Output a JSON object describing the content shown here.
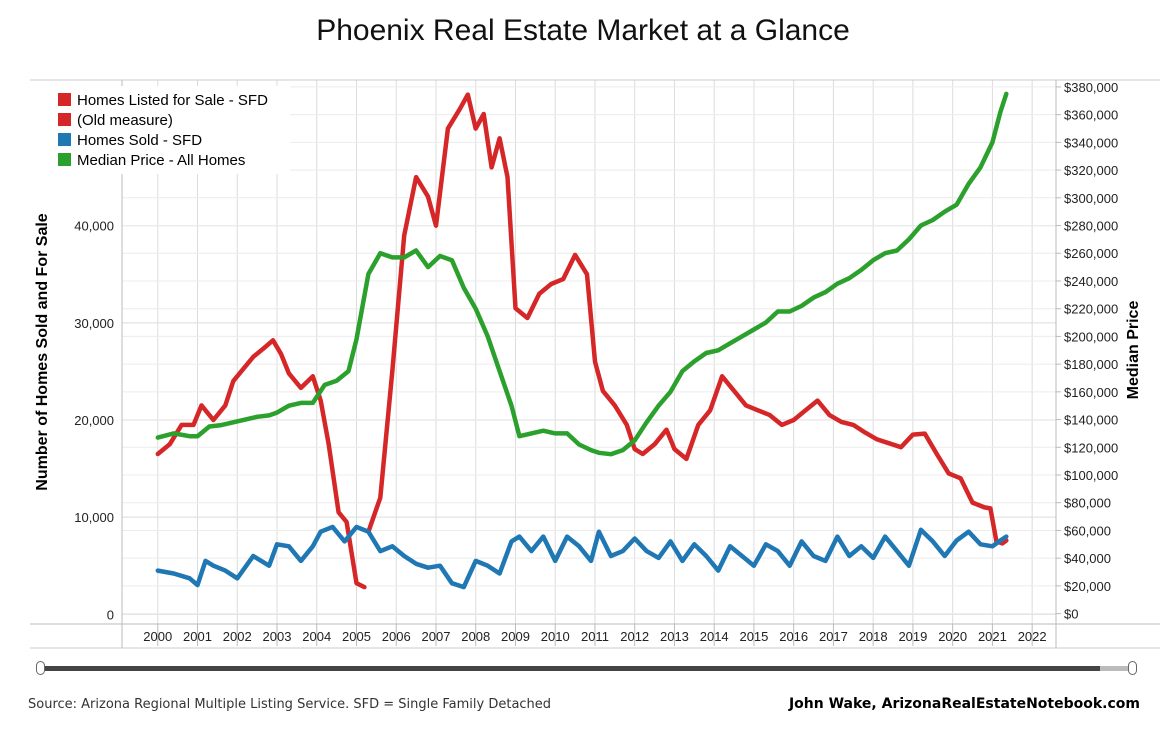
{
  "title": "Phoenix Real Estate Market at a Glance",
  "source_note": "Source: Arizona Regional Multiple Listing Service. SFD = Single Family Detached",
  "credit": "John Wake, ArizonaRealEstateNotebook.com",
  "chart_data": {
    "type": "line",
    "title": "Phoenix Real Estate Market at a Glance",
    "y_left_label": "Number of Homes Sold and For Sale",
    "y_right_label": "Median Price",
    "x_ticks": [
      "2000",
      "2001",
      "2002",
      "2003",
      "2004",
      "2005",
      "2006",
      "2007",
      "2008",
      "2009",
      "2010",
      "2011",
      "2012",
      "2013",
      "2014",
      "2015",
      "2016",
      "2017",
      "2018",
      "2019",
      "2020",
      "2021",
      "2022"
    ],
    "y_left_ticks": [
      "0",
      "10,000",
      "20,000",
      "30,000",
      "40,000"
    ],
    "y_right_ticks": [
      "$0",
      "$20,000",
      "$40,000",
      "$60,000",
      "$80,000",
      "$100,000",
      "$120,000",
      "$140,000",
      "$160,000",
      "$180,000",
      "$200,000",
      "$220,000",
      "$240,000",
      "$260,000",
      "$280,000",
      "$300,000",
      "$320,000",
      "$340,000",
      "$360,000",
      "$380,000"
    ],
    "xlim": [
      1999.1,
      2022.6
    ],
    "ylim_left": [
      -1000,
      55000
    ],
    "ylim_right": [
      -7500,
      385000
    ],
    "grid": true,
    "legend_position": "top-left",
    "series": [
      {
        "name": "Homes Listed for Sale - SFD",
        "color": "#d62728",
        "axis": "left",
        "x": [
          2000.0,
          2000.3,
          2000.6,
          2000.9,
          2001.1,
          2001.4,
          2001.7,
          2001.9,
          2002.1,
          2002.4,
          2002.7,
          2002.9,
          2003.1,
          2003.3,
          2003.6,
          2003.9,
          2004.1,
          2004.3,
          2004.55,
          2004.75,
          2005.0,
          2005.2
        ],
        "values": [
          16500,
          17500,
          19500,
          19500,
          21500,
          20000,
          21500,
          24000,
          25000,
          26500,
          27500,
          28200,
          26800,
          24800,
          23300,
          24500,
          22000,
          17500,
          10500,
          9500,
          3200,
          2800
        ]
      },
      {
        "name": "(Old measure)",
        "color": "#d62728",
        "axis": "left",
        "x": [
          2005.3,
          2005.6,
          2005.9,
          2006.2,
          2006.5,
          2006.8,
          2007.0,
          2007.3,
          2007.6,
          2007.8,
          2008.0,
          2008.2,
          2008.4,
          2008.6,
          2008.8,
          2009.0,
          2009.3,
          2009.6,
          2009.9,
          2010.2,
          2010.5,
          2010.8,
          2011.0,
          2011.2,
          2011.5,
          2011.8,
          2012.0,
          2012.2,
          2012.5,
          2012.8,
          2013.0,
          2013.3,
          2013.6,
          2013.9,
          2014.2,
          2014.5,
          2014.8,
          2015.1,
          2015.4,
          2015.7,
          2016.0,
          2016.3,
          2016.6,
          2016.9,
          2017.2,
          2017.5,
          2017.8,
          2018.1,
          2018.4,
          2018.7,
          2019.0,
          2019.3,
          2019.6,
          2019.9,
          2020.2,
          2020.5,
          2020.8,
          2020.95,
          2021.1,
          2021.25,
          2021.35
        ],
        "values": [
          8500,
          12000,
          25000,
          39000,
          45000,
          43000,
          40000,
          50000,
          52000,
          53500,
          50000,
          51500,
          46000,
          49000,
          45000,
          31500,
          30500,
          33000,
          34000,
          34500,
          37000,
          35000,
          26000,
          23000,
          21500,
          19500,
          17000,
          16500,
          17500,
          19000,
          17000,
          16000,
          19500,
          21000,
          24500,
          23000,
          21500,
          21000,
          20500,
          19500,
          20000,
          21000,
          22000,
          20500,
          19800,
          19500,
          18700,
          18000,
          17600,
          17200,
          18500,
          18600,
          16500,
          14500,
          14000,
          11500,
          11000,
          10900,
          7500,
          7300,
          7600
        ]
      },
      {
        "name": "Homes Sold - SFD",
        "color": "#1f77b4",
        "axis": "left",
        "x": [
          2000.0,
          2000.4,
          2000.8,
          2001.0,
          2001.2,
          2001.4,
          2001.7,
          2002.0,
          2002.4,
          2002.8,
          2003.0,
          2003.3,
          2003.6,
          2003.9,
          2004.1,
          2004.4,
          2004.7,
          2005.0,
          2005.3,
          2005.6,
          2005.9,
          2006.2,
          2006.5,
          2006.8,
          2007.1,
          2007.4,
          2007.7,
          2008.0,
          2008.3,
          2008.6,
          2008.9,
          2009.1,
          2009.4,
          2009.7,
          2010.0,
          2010.3,
          2010.6,
          2010.9,
          2011.1,
          2011.4,
          2011.7,
          2012.0,
          2012.3,
          2012.6,
          2012.9,
          2013.2,
          2013.5,
          2013.8,
          2014.1,
          2014.4,
          2014.7,
          2015.0,
          2015.3,
          2015.6,
          2015.9,
          2016.2,
          2016.5,
          2016.8,
          2017.1,
          2017.4,
          2017.7,
          2018.0,
          2018.3,
          2018.6,
          2018.9,
          2019.2,
          2019.5,
          2019.8,
          2020.1,
          2020.4,
          2020.7,
          2021.0,
          2021.2,
          2021.35
        ],
        "values": [
          4500,
          4200,
          3700,
          3000,
          5500,
          5000,
          4500,
          3700,
          6000,
          5000,
          7200,
          7000,
          5500,
          7000,
          8500,
          9000,
          7500,
          9000,
          8500,
          6500,
          7000,
          6000,
          5200,
          4800,
          5000,
          3200,
          2800,
          5500,
          5000,
          4200,
          7500,
          8000,
          6500,
          8000,
          5500,
          8000,
          7000,
          5500,
          8500,
          6000,
          6500,
          7800,
          6500,
          5800,
          7500,
          5500,
          7200,
          6000,
          4500,
          7000,
          6000,
          5000,
          7200,
          6500,
          5000,
          7500,
          6000,
          5500,
          8000,
          6000,
          7000,
          5800,
          8000,
          6500,
          5000,
          8700,
          7500,
          6000,
          7600,
          8500,
          7200,
          7000,
          7600,
          8000
        ]
      },
      {
        "name": "Median Price - All Homes",
        "color": "#2ca02c",
        "axis": "right",
        "x": [
          2000.0,
          2000.4,
          2000.8,
          2001.0,
          2001.3,
          2001.6,
          2001.9,
          2002.2,
          2002.5,
          2002.8,
          2003.0,
          2003.3,
          2003.6,
          2003.9,
          2004.2,
          2004.5,
          2004.8,
          2005.0,
          2005.3,
          2005.6,
          2005.9,
          2006.2,
          2006.5,
          2006.8,
          2007.1,
          2007.4,
          2007.7,
          2008.0,
          2008.3,
          2008.6,
          2008.9,
          2009.1,
          2009.4,
          2009.7,
          2010.0,
          2010.3,
          2010.6,
          2010.9,
          2011.1,
          2011.4,
          2011.7,
          2012.0,
          2012.3,
          2012.6,
          2012.9,
          2013.2,
          2013.5,
          2013.8,
          2014.1,
          2014.4,
          2014.7,
          2015.0,
          2015.3,
          2015.6,
          2015.9,
          2016.2,
          2016.5,
          2016.8,
          2017.1,
          2017.4,
          2017.7,
          2018.0,
          2018.3,
          2018.6,
          2018.9,
          2019.2,
          2019.5,
          2019.8,
          2020.1,
          2020.4,
          2020.7,
          2021.0,
          2021.2,
          2021.35
        ],
        "values": [
          127000,
          130000,
          128000,
          128000,
          135000,
          136000,
          138000,
          140000,
          142000,
          143000,
          145000,
          150000,
          152000,
          152000,
          165000,
          168000,
          175000,
          198000,
          245000,
          260000,
          257000,
          257000,
          262000,
          250000,
          258000,
          255000,
          235000,
          220000,
          200000,
          175000,
          150000,
          128000,
          130000,
          132000,
          130000,
          130000,
          122000,
          118000,
          116000,
          115000,
          118000,
          125000,
          138000,
          150000,
          160000,
          175000,
          182000,
          188000,
          190000,
          195000,
          200000,
          205000,
          210000,
          218000,
          218000,
          222000,
          228000,
          232000,
          238000,
          242000,
          248000,
          255000,
          260000,
          262000,
          270000,
          280000,
          284000,
          290000,
          295000,
          310000,
          322000,
          340000,
          362000,
          375000
        ]
      }
    ]
  }
}
